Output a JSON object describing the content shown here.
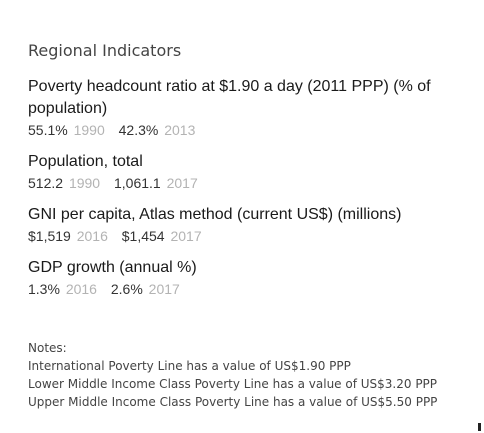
{
  "section": {
    "title": "Regional Indicators"
  },
  "indicators": [
    {
      "name": "Poverty headcount ratio at $1.90 a day (2011 PPP) (% of population)",
      "values": [
        {
          "value": "55.1%",
          "year": "1990"
        },
        {
          "value": "42.3%",
          "year": "2013"
        }
      ]
    },
    {
      "name": "Population, total",
      "values": [
        {
          "value": "512.2",
          "year": "1990"
        },
        {
          "value": "1,061.1",
          "year": "2017"
        }
      ]
    },
    {
      "name": "GNI per capita, Atlas method (current US$) (millions)",
      "values": [
        {
          "value": "$1,519",
          "year": "2016"
        },
        {
          "value": "$1,454",
          "year": "2017"
        }
      ]
    },
    {
      "name": "GDP growth (annual %)",
      "values": [
        {
          "value": "1.3%",
          "year": "2016"
        },
        {
          "value": "2.6%",
          "year": "2017"
        }
      ]
    }
  ],
  "notes": {
    "title": "Notes:",
    "lines": [
      "International Poverty Line has a value of US$1.90 PPP",
      "Lower Middle Income Class Poverty Line has a value of US$3.20 PPP",
      "Upper Middle Income Class Poverty Line has a value of US$5.50 PPP"
    ]
  },
  "colors": {
    "value_text": "#333333",
    "year_text": "#b3b3b3",
    "heading_text": "#1a1a1a"
  }
}
